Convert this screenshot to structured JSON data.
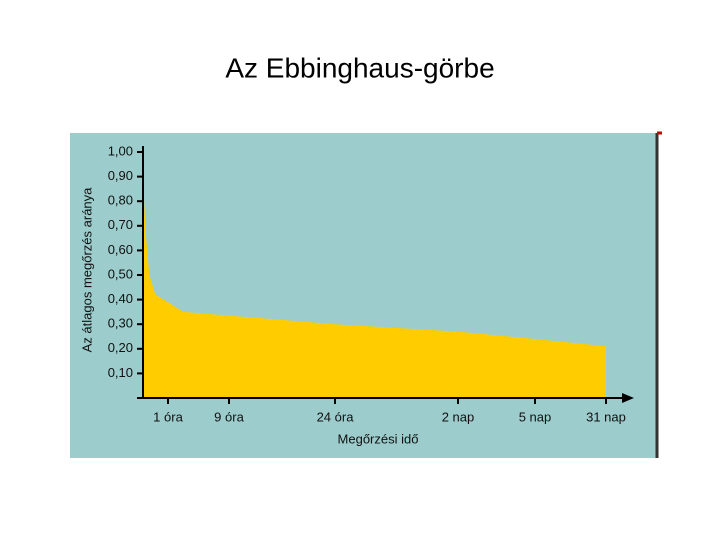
{
  "chart_data": {
    "type": "area",
    "title": "Az Ebbinghaus-görbe",
    "y_label": "Az átlagos megőrzés aránya",
    "x_label": "Megőrzési idő",
    "x": [
      0,
      0.1,
      0.25,
      0.5,
      1,
      3,
      9,
      24,
      48,
      120,
      744
    ],
    "values": [
      0.89,
      0.68,
      0.5,
      0.42,
      0.39,
      0.35,
      0.335,
      0.3,
      0.27,
      0.24,
      0.21
    ],
    "color": "#ffcc00",
    "background": "#9ccccc",
    "xlim": [
      0,
      744
    ],
    "xticks": [
      {
        "value": 1,
        "label": "1 óra"
      },
      {
        "value": 9,
        "label": "9 óra"
      },
      {
        "value": 24,
        "label": "24 óra"
      },
      {
        "value": 48,
        "label": "2 nap"
      },
      {
        "value": 120,
        "label": "5 nap"
      },
      {
        "value": 744,
        "label": "31 nap"
      }
    ],
    "ylim": [
      0,
      1
    ],
    "yticks": [
      {
        "value": 0.1,
        "label": "0,10"
      },
      {
        "value": 0.2,
        "label": "0,20"
      },
      {
        "value": 0.3,
        "label": "0,30"
      },
      {
        "value": 0.4,
        "label": "0,40"
      },
      {
        "value": 0.5,
        "label": "0,50"
      },
      {
        "value": 0.6,
        "label": "0,60"
      },
      {
        "value": 0.7,
        "label": "0,70"
      },
      {
        "value": 0.8,
        "label": "0,80"
      },
      {
        "value": 0.9,
        "label": "0,90"
      },
      {
        "value": 1,
        "label": "1,00"
      }
    ]
  }
}
